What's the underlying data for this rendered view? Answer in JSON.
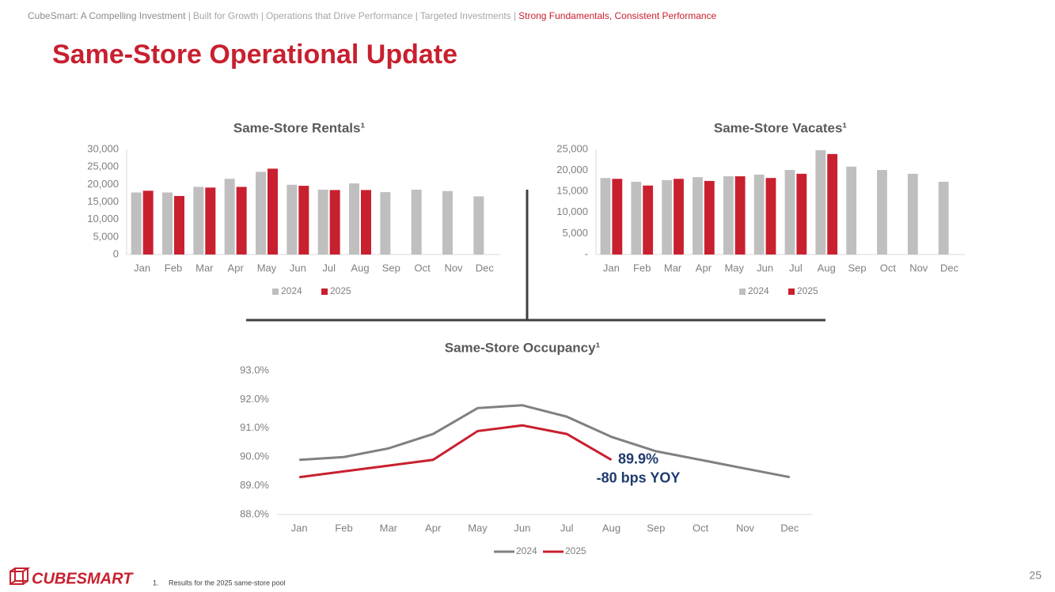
{
  "header": {
    "breadcrumb": [
      "CubeSmart: A Compelling Investment",
      "Built for Growth",
      "Operations that Drive Performance",
      "Targeted Investments",
      "Strong Fundamentals, Consistent Performance"
    ],
    "separator": "|",
    "title": "Same-Store Operational Update"
  },
  "chart_data": [
    {
      "type": "bar",
      "title": "Same-Store Rentals¹",
      "categories": [
        "Jan",
        "Feb",
        "Mar",
        "Apr",
        "May",
        "Jun",
        "Jul",
        "Aug",
        "Sep",
        "Oct",
        "Nov",
        "Dec"
      ],
      "series": [
        {
          "name": "2024",
          "color": "#bfbfbf",
          "values": [
            17700,
            17700,
            19300,
            21600,
            23600,
            19900,
            18500,
            20300,
            17800,
            18500,
            18100,
            16600
          ]
        },
        {
          "name": "2025",
          "color": "#c8202f",
          "values": [
            18200,
            16700,
            19100,
            19300,
            24500,
            19600,
            18400,
            18400,
            null,
            null,
            null,
            null
          ]
        }
      ],
      "ylim": [
        0,
        30000
      ],
      "yticks": [
        0,
        {
          "value": 5000,
          "label": "5,000"
        },
        {
          "value": 10000,
          "label": "10,000"
        },
        {
          "value": 15000,
          "label": "15,000"
        },
        {
          "value": 20000,
          "label": "20,000"
        },
        {
          "value": 25000,
          "label": "25,000"
        },
        {
          "value": 30000,
          "label": "30,000"
        }
      ],
      "legend": "bottom"
    },
    {
      "type": "bar",
      "title": "Same-Store Vacates¹",
      "categories": [
        "Jan",
        "Feb",
        "Mar",
        "Apr",
        "May",
        "Jun",
        "Jul",
        "Aug",
        "Sep",
        "Oct",
        "Nov",
        "Dec"
      ],
      "series": [
        {
          "name": "2024",
          "color": "#bfbfbf",
          "values": [
            18200,
            17300,
            17700,
            18400,
            18600,
            19000,
            20100,
            24800,
            20900,
            20100,
            19200,
            17300
          ]
        },
        {
          "name": "2025",
          "color": "#c8202f",
          "values": [
            18000,
            16400,
            18000,
            17500,
            18600,
            18200,
            19200,
            23900,
            null,
            null,
            null,
            null
          ]
        }
      ],
      "ylim": [
        0,
        25000
      ],
      "yticks": [
        {
          "value": 0,
          "label": "-"
        },
        {
          "value": 5000,
          "label": "5,000"
        },
        {
          "value": 10000,
          "label": "10,000"
        },
        {
          "value": 15000,
          "label": "15,000"
        },
        {
          "value": 20000,
          "label": "20,000"
        },
        {
          "value": 25000,
          "label": "25,000"
        }
      ],
      "legend": "bottom"
    },
    {
      "type": "line",
      "title": "Same-Store Occupancy¹",
      "categories": [
        "Jan",
        "Feb",
        "Mar",
        "Apr",
        "May",
        "Jun",
        "Jul",
        "Aug",
        "Sep",
        "Oct",
        "Nov",
        "Dec"
      ],
      "series": [
        {
          "name": "2024",
          "color": "#808080",
          "values": [
            89.9,
            90.0,
            90.3,
            90.8,
            91.7,
            91.8,
            91.4,
            90.7,
            90.2,
            89.9,
            89.6,
            89.3
          ]
        },
        {
          "name": "2025",
          "color": "#c8202f",
          "values": [
            89.3,
            89.5,
            89.7,
            89.9,
            90.9,
            91.1,
            90.8,
            89.9,
            null,
            null,
            null,
            null
          ]
        }
      ],
      "ylim": [
        88,
        93
      ],
      "yticks": [
        {
          "value": 88,
          "label": "88.0%"
        },
        {
          "value": 89,
          "label": "89.0%"
        },
        {
          "value": 90,
          "label": "90.0%"
        },
        {
          "value": 91,
          "label": "91.0%"
        },
        {
          "value": 92,
          "label": "92.0%"
        },
        {
          "value": 93,
          "label": "93.0%"
        }
      ],
      "annotations": [
        "89.9%",
        "-80 bps YOY"
      ],
      "legend": "bottom"
    }
  ],
  "footer": {
    "logo": "CUBESMART",
    "footnote_number": "1.",
    "footnote": "Results for the 2025 same-store pool",
    "page_number": "25"
  }
}
